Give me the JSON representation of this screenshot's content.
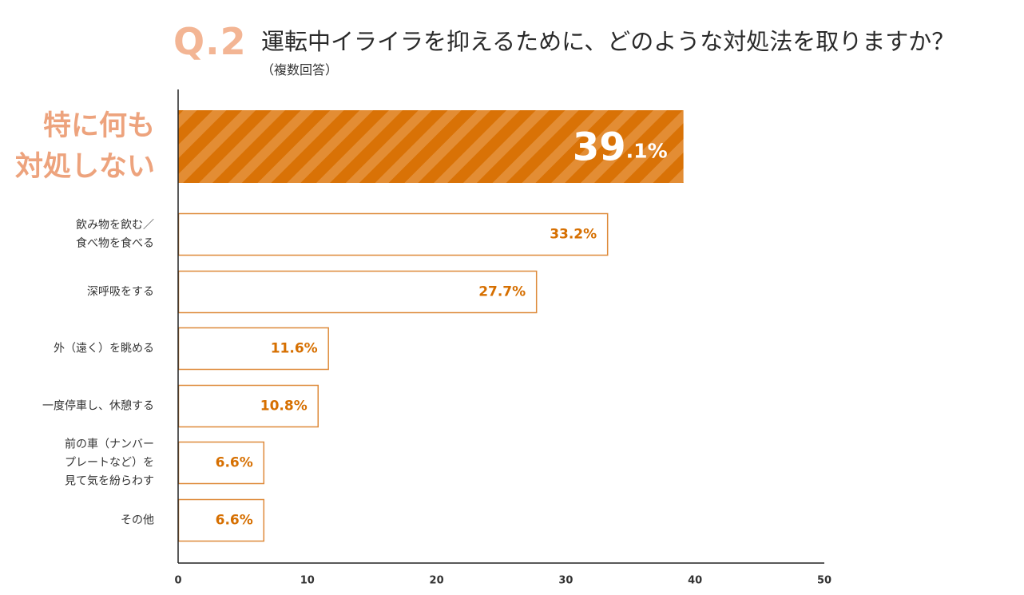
{
  "header": {
    "question_number": "Q.2",
    "title": "運転中イライラを抑えるために、どのような対処法を取りますか？",
    "subtitle": "（複数回答）"
  },
  "chart_data": {
    "type": "bar",
    "orientation": "horizontal",
    "title": "運転中イライラを抑えるために、どのような対処法を取りますか？",
    "subtitle": "（複数回答）",
    "unit": "%",
    "xlim": [
      0,
      50
    ],
    "xticks": [
      0,
      10,
      20,
      30,
      40,
      50
    ],
    "categories": [
      [
        "特に何も",
        "対処しない"
      ],
      [
        "飲み物を飲む／",
        "食べ物を食べる"
      ],
      [
        "深呼吸をする"
      ],
      [
        "外（遠く）を眺める"
      ],
      [
        "一度停車し、休憩する"
      ],
      [
        "前の車（ナンバー",
        "プレートなど）を",
        "見て気を紛らわす"
      ],
      [
        "その他"
      ]
    ],
    "values": [
      39.1,
      33.2,
      27.7,
      11.6,
      10.8,
      6.6,
      6.6
    ],
    "value_labels": [
      "39.1%",
      "33.2%",
      "27.7%",
      "11.6%",
      "10.8%",
      "6.6%",
      "6.6%"
    ],
    "highlight_index": 0,
    "colors": {
      "highlight_fill": "#d97206",
      "highlight_stripe": "#e38d34",
      "bar_stroke": "#de8a3a",
      "value_text": "#d66f00",
      "highlight_label": "#eda37d",
      "axis": "#222222"
    }
  }
}
